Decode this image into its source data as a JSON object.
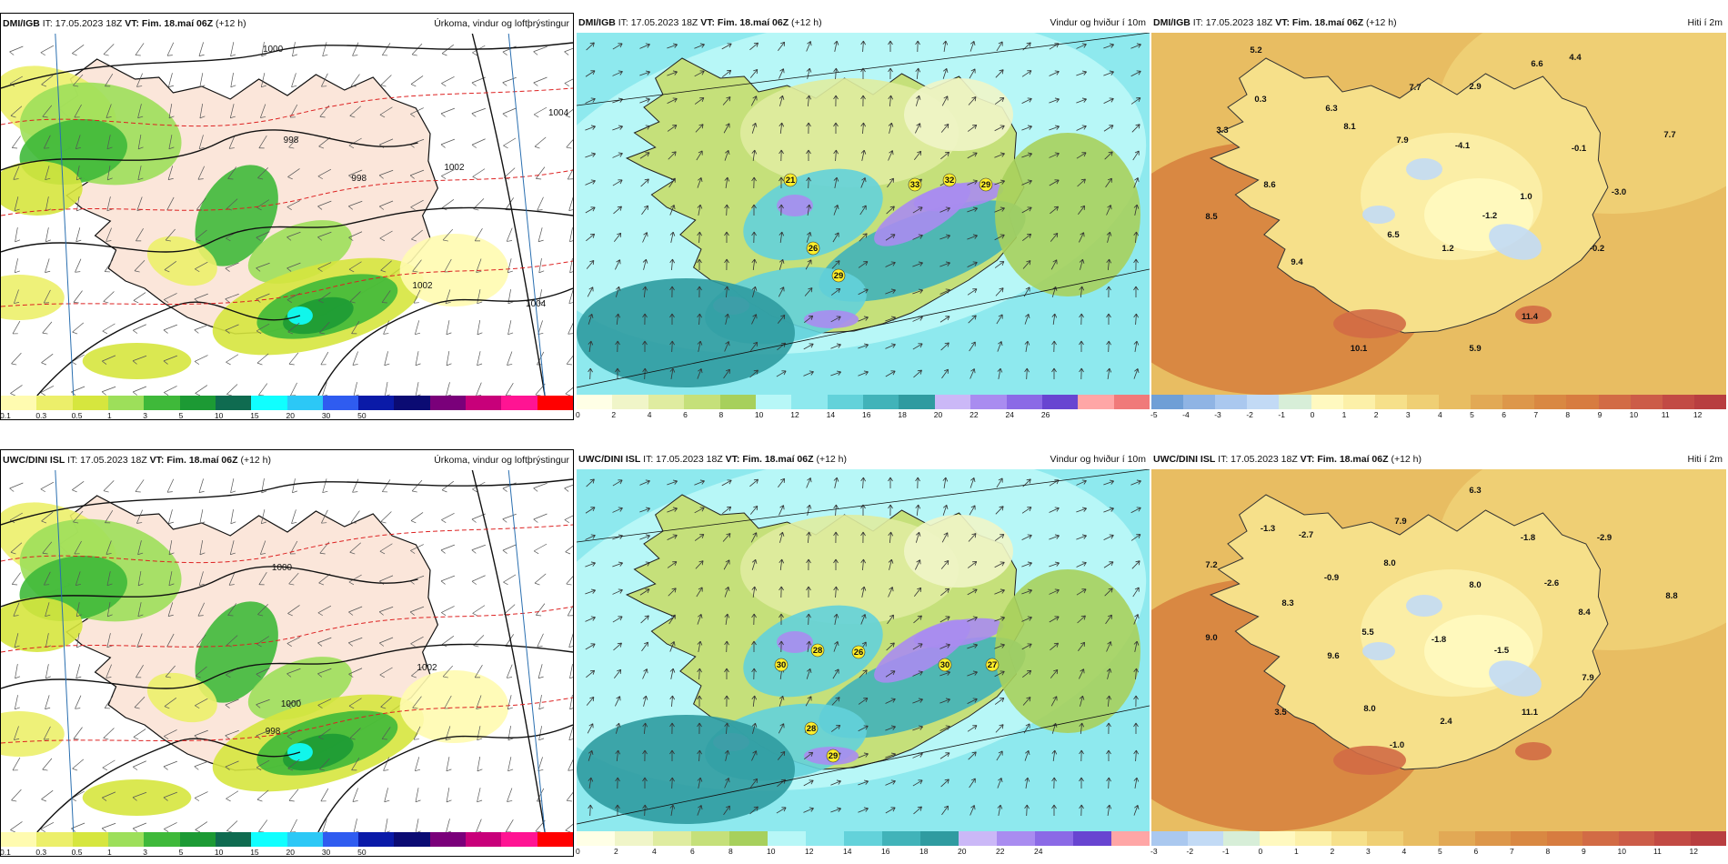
{
  "panels": [
    {
      "id": "p1",
      "model_prefix": "DMI/IGB",
      "it_prefix": " IT: 17.05.2023 18Z ",
      "vt": "VT: Fim. 18.maí 06Z",
      "lead": " (+12 h)",
      "field_title": "Úrkoma, vindur og loftþrýstingur",
      "type": "precip",
      "colorbar": {
        "colors": [
          "#fffbb0",
          "#ecef6a",
          "#d6e63e",
          "#9ddf5a",
          "#3fb93a",
          "#1c9a34",
          "#0f6b50",
          "#10ffff",
          "#2cc8f6",
          "#2f5cf0",
          "#0a1aa8",
          "#0b0b73",
          "#7a007a",
          "#c8007a",
          "#ff1493",
          "#ff0000"
        ],
        "ticks": [
          "0.1",
          "0.3",
          "0.5",
          "1",
          "3",
          "5",
          "10",
          "15",
          "20",
          "30",
          "50"
        ],
        "tick_idx": [
          0,
          2,
          4,
          6,
          8,
          10,
          12,
          14,
          16,
          18,
          20
        ]
      },
      "labels": [
        {
          "text": "1000"
        },
        {
          "text": "998"
        },
        {
          "text": "998"
        },
        {
          "text": "1004"
        },
        {
          "text": "1002"
        },
        {
          "text": "1002"
        },
        {
          "text": "1004"
        }
      ]
    },
    {
      "id": "p2",
      "model_prefix": "DMI/IGB",
      "it_prefix": " IT: 17.05.2023 18Z ",
      "vt": "VT: Fim. 18.maí 06Z",
      "lead": " (+12 h)",
      "field_title": "Vindur og hviður í 10m",
      "type": "wind",
      "colorbar": {
        "colors": [
          "#ffffe6",
          "#f0f5c8",
          "#dfeca0",
          "#c5e07a",
          "#a7d05c",
          "#b7f7f7",
          "#8ee9ee",
          "#63d2da",
          "#41b3b9",
          "#2f9ba0",
          "#cbb8f7",
          "#a98cf0",
          "#8b6ae6",
          "#6845d1",
          "#ffa6a6",
          "#f07a7a"
        ],
        "ticks": [
          "0",
          "2",
          "4",
          "6",
          "8",
          "10",
          "12",
          "14",
          "16",
          "18",
          "20",
          "22",
          "24",
          "26"
        ],
        "tick_idx": [
          0,
          1,
          2,
          3,
          4,
          5,
          6,
          7,
          8,
          9,
          10,
          11,
          12,
          13
        ]
      },
      "labels": [
        {
          "text": "21"
        },
        {
          "text": "26"
        },
        {
          "text": "29"
        },
        {
          "text": "33"
        },
        {
          "text": "32"
        },
        {
          "text": "29"
        }
      ]
    },
    {
      "id": "p3",
      "model_prefix": "DMI/IGB",
      "it_prefix": " IT: 17.05.2023 18Z ",
      "vt": "VT: Fim. 18.maí 06Z",
      "lead": " (+12 h)",
      "field_title": "Hiti í 2m",
      "type": "temp",
      "colorbar": {
        "colors": [
          "#6f9fd6",
          "#8fb4e4",
          "#aac8ef",
          "#c2daf5",
          "#d7eed8",
          "#fff9c0",
          "#fcf0a8",
          "#f6e08a",
          "#efcf74",
          "#e8bd62",
          "#e2a955",
          "#dd974a",
          "#d98842",
          "#d77c40",
          "#d26b45",
          "#cc5c48",
          "#c24a44",
          "#b83e40"
        ],
        "ticks": [
          "-5",
          "-4",
          "-3",
          "-2",
          "-1",
          "0",
          "1",
          "2",
          "3",
          "4",
          "5",
          "6",
          "7",
          "8",
          "9",
          "10",
          "11",
          "12"
        ],
        "tick_idx": [
          0,
          1,
          2,
          3,
          4,
          5,
          6,
          7,
          8,
          9,
          10,
          11,
          12,
          13,
          14,
          15,
          16,
          17
        ]
      },
      "labels": [
        {
          "text": "5.2"
        },
        {
          "text": "0.3"
        },
        {
          "text": "3.3"
        },
        {
          "text": "6.3"
        },
        {
          "text": "7.7"
        },
        {
          "text": "2.9"
        },
        {
          "text": "6.6"
        },
        {
          "text": "4.4"
        },
        {
          "text": "8.1"
        },
        {
          "text": "7.9"
        },
        {
          "text": "-4.1"
        },
        {
          "text": "-0.1"
        },
        {
          "text": "7.7"
        },
        {
          "text": "8.6"
        },
        {
          "text": "1.0"
        },
        {
          "text": "-3.0"
        },
        {
          "text": "8.5"
        },
        {
          "text": "6.5"
        },
        {
          "text": "-1.2"
        },
        {
          "text": "1.2"
        },
        {
          "text": "-0.2"
        },
        {
          "text": "9.4"
        },
        {
          "text": "11.4"
        },
        {
          "text": "10.1"
        },
        {
          "text": "5.9"
        }
      ]
    },
    {
      "id": "p4",
      "model_prefix": "UWC/DINI ISL",
      "it_prefix": " IT: 17.05.2023 18Z ",
      "vt": "VT: Fim. 18.maí 06Z",
      "lead": " (+12 h)",
      "field_title": "Úrkoma, vindur og loftþrýstingur",
      "type": "precip",
      "colorbar": {
        "colors": [
          "#fffbb0",
          "#ecef6a",
          "#d6e63e",
          "#9ddf5a",
          "#3fb93a",
          "#1c9a34",
          "#0f6b50",
          "#10ffff",
          "#2cc8f6",
          "#2f5cf0",
          "#0a1aa8",
          "#0b0b73",
          "#7a007a",
          "#c8007a",
          "#ff1493",
          "#ff0000"
        ],
        "ticks": [
          "0.1",
          "0.3",
          "0.5",
          "1",
          "3",
          "5",
          "10",
          "15",
          "20",
          "30",
          "50"
        ],
        "tick_idx": [
          0,
          2,
          4,
          6,
          8,
          10,
          12,
          14,
          16,
          18,
          20
        ]
      },
      "labels": [
        {
          "text": "1000"
        },
        {
          "text": "1000"
        },
        {
          "text": "998"
        },
        {
          "text": "1002"
        }
      ]
    },
    {
      "id": "p5",
      "model_prefix": "UWC/DINI ISL",
      "it_prefix": " IT: 17.05.2023 18Z ",
      "vt": "VT: Fim. 18.maí 06Z",
      "lead": " (+12 h)",
      "field_title": "Vindur og hviður í 10m",
      "type": "wind",
      "colorbar": {
        "colors": [
          "#ffffe6",
          "#f0f5c8",
          "#dfeca0",
          "#c5e07a",
          "#a7d05c",
          "#b7f7f7",
          "#8ee9ee",
          "#63d2da",
          "#41b3b9",
          "#2f9ba0",
          "#cbb8f7",
          "#a98cf0",
          "#8b6ae6",
          "#6845d1",
          "#ffa6a6"
        ],
        "ticks": [
          "0",
          "2",
          "4",
          "6",
          "8",
          "10",
          "12",
          "14",
          "16",
          "18",
          "20",
          "22",
          "24"
        ],
        "tick_idx": [
          0,
          1,
          2,
          3,
          4,
          5,
          6,
          7,
          8,
          9,
          10,
          11,
          12
        ]
      },
      "labels": [
        {
          "text": "30"
        },
        {
          "text": "28"
        },
        {
          "text": "26"
        },
        {
          "text": "30"
        },
        {
          "text": "27"
        },
        {
          "text": "28"
        },
        {
          "text": "29"
        }
      ]
    },
    {
      "id": "p6",
      "model_prefix": "UWC/DINI ISL",
      "it_prefix": " IT: 17.05.2023 18Z ",
      "vt": "VT: Fim. 18.maí 06Z",
      "lead": " (+12 h)",
      "field_title": "Hiti í 2m",
      "type": "temp",
      "colorbar": {
        "colors": [
          "#aac8ef",
          "#c2daf5",
          "#d7eed8",
          "#fff9c0",
          "#fcf0a8",
          "#f6e08a",
          "#efcf74",
          "#e8bd62",
          "#e2a955",
          "#dd974a",
          "#d98842",
          "#d77c40",
          "#d26b45",
          "#cc5c48",
          "#c24a44",
          "#b83e40"
        ],
        "ticks": [
          "-3",
          "-2",
          "-1",
          "0",
          "1",
          "2",
          "3",
          "4",
          "5",
          "6",
          "7",
          "8",
          "9",
          "10",
          "11",
          "12"
        ],
        "tick_idx": [
          0,
          1,
          2,
          3,
          4,
          5,
          6,
          7,
          8,
          9,
          10,
          11,
          12,
          13,
          14,
          15
        ]
      },
      "labels": [
        {
          "text": "6.3"
        },
        {
          "text": "-1.3"
        },
        {
          "text": "-2.7"
        },
        {
          "text": "7.9"
        },
        {
          "text": "-1.8"
        },
        {
          "text": "-2.9"
        },
        {
          "text": "7.2"
        },
        {
          "text": "-0.9"
        },
        {
          "text": "8.0"
        },
        {
          "text": "8.0"
        },
        {
          "text": "-2.6"
        },
        {
          "text": "8.8"
        },
        {
          "text": "8.3"
        },
        {
          "text": "8.4"
        },
        {
          "text": "9.0"
        },
        {
          "text": "5.5"
        },
        {
          "text": "-1.8"
        },
        {
          "text": "9.6"
        },
        {
          "text": "-1.5"
        },
        {
          "text": "7.9"
        },
        {
          "text": "3.5"
        },
        {
          "text": "8.0"
        },
        {
          "text": "11.1"
        },
        {
          "text": "2.4"
        },
        {
          "text": "-1.0"
        }
      ]
    }
  ]
}
